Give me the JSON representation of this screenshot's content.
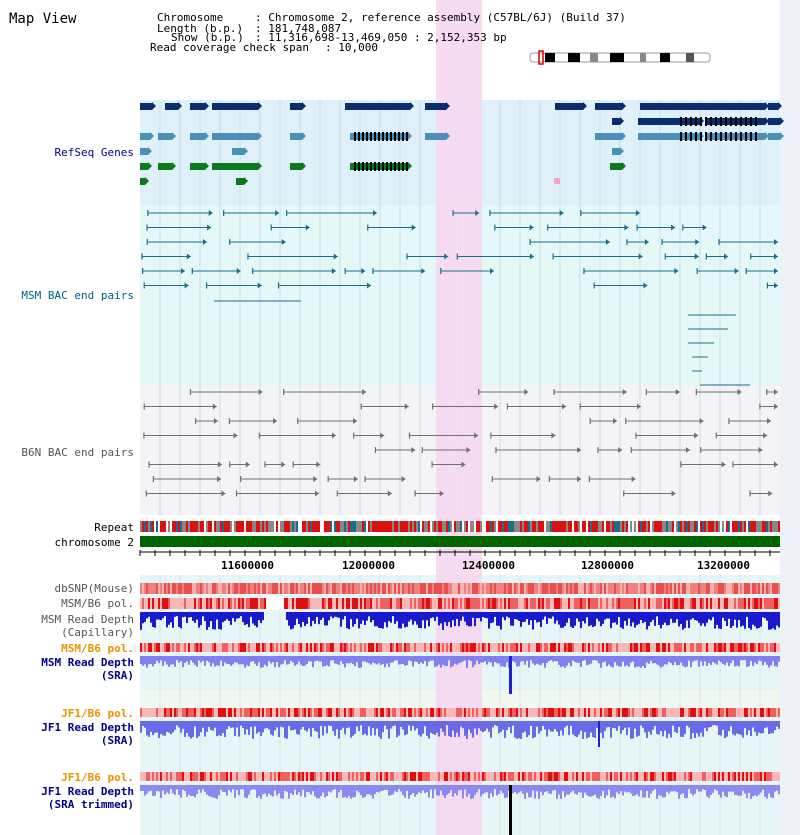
{
  "title": "Map View",
  "header": {
    "chromosome_key": "Chromosome",
    "chromosome_value": ": Chromosome 2, reference assembly (C57BL/6J) (Build 37)",
    "length_key": "Length (b.p.)",
    "length_value": ": 181,748,087",
    "show_key": "Show (b.p.)",
    "show_value": ": 11,316,698-13,469,050 : 2,152,353 bp",
    "coverage_key": "Read coverage check span",
    "coverage_value": ": 10,000"
  },
  "tracks": {
    "refseq": "RefSeq Genes",
    "msm_bac": "MSM BAC end pairs",
    "b6n_bac": "B6N BAC end pairs",
    "repeat": "Repeat",
    "chromosome": "chromosome 2",
    "dbsnp": "dbSNP(Mouse)",
    "msm_b6_pol_1": "MSM/B6 pol.",
    "msm_depth_cap_1": "MSM Read Depth",
    "msm_depth_cap_2": "(Capillary)",
    "msm_b6_pol_2": "MSM/B6 pol.",
    "msm_depth_sra_1": "MSM Read Depth",
    "msm_depth_sra_2": "(SRA)",
    "jf1_b6_pol_1": "JF1/B6 pol.",
    "jf1_depth_sra_1": "JF1 Read Depth",
    "jf1_depth_sra_2": "(SRA)",
    "jf1_b6_pol_2": "JF1/B6 pol.",
    "jf1_depth_trim_1": "JF1 Read Depth",
    "jf1_depth_trim_2": "(SRA trimmed)"
  },
  "axis": {
    "ticks": [
      "11600000",
      "12000000",
      "12400000",
      "12800000",
      "13200000"
    ]
  },
  "colors": {
    "label_blue": "#00008b",
    "label_teal": "#005f7f",
    "label_gray": "#555555",
    "label_orange": "#e69500",
    "highlight": "#f6d8f0",
    "chromosome": "#006400"
  }
}
